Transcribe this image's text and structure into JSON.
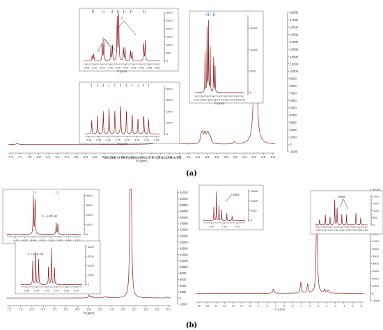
{
  "chart_data": [
    {
      "panel": "(a)",
      "type": "line",
      "title": "mixture of methylamines incl. tri-(2) and tetra-(1)",
      "xlabel": "f1 (ppm)",
      "x_ticks": [
        "7.4",
        "7.2",
        "7.0",
        "6.8",
        "6.6",
        "6.4",
        "6.2",
        "6.0",
        "5.8",
        "5.6",
        "5.4",
        "5.2",
        "5.0",
        "4.8",
        "4.6",
        "4.4",
        "4.2",
        "4.0",
        "3.8",
        "3.6",
        "3.4",
        "3.2",
        "3.0",
        "2.8",
        "2.6",
        "2.4",
        "2.2",
        "2.0",
        "1.8"
      ],
      "xlim": [
        7.45,
        1.75
      ],
      "y_ticks": [
        "18000",
        "17000",
        "16000",
        "15000",
        "14000",
        "13000",
        "12000",
        "11000",
        "10000",
        "9000",
        "8000",
        "7000",
        "6000",
        "5000",
        "4000",
        "3000",
        "2000",
        "1000",
        "0",
        "-1000"
      ],
      "ylim": [
        -1000,
        18000
      ],
      "peaks": [
        {
          "ppm": 4.24,
          "h": 600
        },
        {
          "ppm": 4.2,
          "h": 900
        },
        {
          "ppm": 4.15,
          "h": 1800
        },
        {
          "ppm": 4.1,
          "h": 1400
        },
        {
          "ppm": 4.07,
          "h": 2100
        },
        {
          "ppm": 4.05,
          "h": 2600
        },
        {
          "ppm": 4.02,
          "h": 1500
        },
        {
          "ppm": 3.97,
          "h": 1200
        },
        {
          "ppm": 3.88,
          "h": 1100
        },
        {
          "ppm": 3.33,
          "h": 900
        },
        {
          "ppm": 3.3,
          "h": 1200
        },
        {
          "ppm": 3.25,
          "h": 1300
        },
        {
          "ppm": 3.2,
          "h": 1100
        },
        {
          "ppm": 3.17,
          "h": 900
        },
        {
          "ppm": 3.13,
          "h": 700
        },
        {
          "ppm": 2.62,
          "h": 300
        },
        {
          "ppm": 2.18,
          "h": 17500
        },
        {
          "ppm": 2.16,
          "h": 12000
        },
        {
          "ppm": 7.26,
          "h": 150
        }
      ],
      "insets": [
        {
          "x_ticks": [
            "4.25",
            "4.20",
            "4.15",
            "4.10",
            "4.05",
            "4.00",
            "3.95",
            "3.90",
            "3.85",
            "3.80"
          ],
          "xlim": [
            4.27,
            3.78
          ],
          "y_ticks": [
            "3000",
            "2500",
            "2000",
            "1500",
            "1000",
            "500",
            "0"
          ],
          "ylim": [
            -100,
            3000
          ],
          "xlabel": "f1 (ppm)",
          "annotations": [
            "1",
            "2"
          ],
          "peaks": [
            {
              "ppm": 4.215,
              "h": 350
            },
            {
              "ppm": 4.205,
              "h": 450
            },
            {
              "ppm": 4.15,
              "h": 1200
            },
            {
              "ppm": 4.14,
              "h": 1300
            },
            {
              "ppm": 4.095,
              "h": 900
            },
            {
              "ppm": 4.085,
              "h": 1000
            },
            {
              "ppm": 4.055,
              "h": 2900
            },
            {
              "ppm": 4.045,
              "h": 2950
            },
            {
              "ppm": 4.015,
              "h": 800
            },
            {
              "ppm": 4.005,
              "h": 850
            },
            {
              "ppm": 3.97,
              "h": 650
            },
            {
              "ppm": 3.96,
              "h": 600
            },
            {
              "ppm": 3.885,
              "h": 1100
            },
            {
              "ppm": 3.875,
              "h": 1300
            }
          ]
        },
        {
          "x_ticks": [
            "2.22",
            "2.20",
            "2.18",
            "2.16",
            "2.14",
            "2.12",
            "2.10",
            "2.08",
            "2.06"
          ],
          "xlim": [
            2.225,
            2.055
          ],
          "y_ticks": [
            "15000",
            "10000",
            "5000",
            "0"
          ],
          "ylim": [
            -500,
            18000
          ],
          "xlabel": "f1 (ppm)",
          "peaks": [
            {
              "ppm": 2.19,
              "h": 9500
            },
            {
              "ppm": 2.183,
              "h": 15000
            },
            {
              "ppm": 2.178,
              "h": 16500
            },
            {
              "ppm": 2.172,
              "h": 12000
            },
            {
              "ppm": 2.16,
              "h": 8500
            },
            {
              "ppm": 2.155,
              "h": 7000
            }
          ]
        },
        {
          "x_ticks": [
            "3.40",
            "3.35",
            "3.30",
            "3.25",
            "3.20",
            "3.15",
            "3.10",
            "3.05"
          ],
          "xlim": [
            3.42,
            3.03
          ],
          "y_ticks": [
            "4000",
            "3000",
            "2000",
            "1000",
            "0"
          ],
          "ylim": [
            -100,
            4200
          ],
          "xlabel": "f1 (ppm)",
          "peaks": [
            {
              "ppm": 3.385,
              "h": 1200
            },
            {
              "ppm": 3.355,
              "h": 1600
            },
            {
              "ppm": 3.325,
              "h": 2000
            },
            {
              "ppm": 3.295,
              "h": 2300
            },
            {
              "ppm": 3.265,
              "h": 2100
            },
            {
              "ppm": 3.235,
              "h": 2600
            },
            {
              "ppm": 3.205,
              "h": 2200
            },
            {
              "ppm": 3.175,
              "h": 1900
            },
            {
              "ppm": 3.145,
              "h": 1500
            },
            {
              "ppm": 3.115,
              "h": 1700
            },
            {
              "ppm": 3.09,
              "h": 1300
            }
          ]
        }
      ]
    },
    {
      "panel": "(b)-left",
      "type": "line",
      "xlabel": "f1 (ppm)",
      "x_ticks": [
        "7.5",
        "7.0",
        "6.5",
        "6.0",
        "5.5",
        "5.0",
        "4.5",
        "4.0",
        "3.5",
        "3.0",
        "2.5",
        "2.0",
        "1.5",
        "1.0",
        "0.5"
      ],
      "xlim": [
        7.6,
        0.4
      ],
      "y_ticks": [
        "34000",
        "32000",
        "30000",
        "28000",
        "26000",
        "24000",
        "22000",
        "20000",
        "18000",
        "16000",
        "14000",
        "12000",
        "10000",
        "8000",
        "6000",
        "4000",
        "2000",
        "0",
        "-2000"
      ],
      "ylim": [
        -2000,
        35000
      ],
      "peaks": [
        {
          "ppm": 3.99,
          "h": 900
        },
        {
          "ppm": 3.87,
          "h": 600
        },
        {
          "ppm": 3.32,
          "h": 400
        },
        {
          "ppm": 3.22,
          "h": 500
        },
        {
          "ppm": 2.18,
          "h": 33000
        },
        {
          "ppm": 2.13,
          "h": 31000
        },
        {
          "ppm": 0.55,
          "h": 300
        }
      ],
      "insets": [
        {
          "x_ticks": [
            "4.10",
            "4.05",
            "4.00",
            "3.95",
            "3.90",
            "3.85",
            "3.80",
            "3.75"
          ],
          "xlim": [
            4.15,
            3.73
          ],
          "y_ticks": [
            "4000",
            "3000",
            "2000",
            "1000",
            "0"
          ],
          "ylim": [
            -100,
            4200
          ],
          "annotations": [
            "J = 2.43 Hz"
          ],
          "peaks": [
            {
              "ppm": 4.0,
              "h": 4000
            },
            {
              "ppm": 3.99,
              "h": 3700
            },
            {
              "ppm": 3.87,
              "h": 1200
            },
            {
              "ppm": 3.86,
              "h": 1100
            }
          ]
        },
        {
          "x_ticks": [
            "3.35",
            "3.30",
            "3.25",
            "3.20",
            "3.15",
            "3.10"
          ],
          "xlim": [
            3.38,
            3.07
          ],
          "y_ticks": [
            "4000",
            "3000",
            "2000",
            "1000",
            "0"
          ],
          "ylim": [
            -100,
            4200
          ],
          "annotations": [
            "J = 11.3 Hz"
          ],
          "peaks": [
            {
              "ppm": 3.32,
              "h": 2500
            },
            {
              "ppm": 3.305,
              "h": 3800
            },
            {
              "ppm": 3.29,
              "h": 2700
            },
            {
              "ppm": 3.24,
              "h": 2100
            },
            {
              "ppm": 3.225,
              "h": 3900
            },
            {
              "ppm": 3.21,
              "h": 2000
            }
          ]
        }
      ]
    },
    {
      "panel": "(b)-right",
      "type": "line",
      "xlabel": "f1 (ppm)",
      "x_ticks": [
        "16",
        "15",
        "14",
        "13",
        "12",
        "11",
        "10",
        "9",
        "8",
        "7",
        "6",
        "5",
        "4",
        "3",
        "2",
        "1",
        "0",
        "-1",
        "-2",
        "-3"
      ],
      "xlim": [
        16.3,
        -3.3
      ],
      "y_ticks": [
        "14000",
        "13000",
        "12000",
        "11000",
        "10000",
        "9000",
        "8000",
        "7000",
        "6000",
        "5000",
        "4000",
        "3000",
        "2000",
        "1000",
        "0",
        "-1000"
      ],
      "ylim": [
        -1000,
        14000
      ],
      "peaks": [
        {
          "ppm": 7.26,
          "h": 600
        },
        {
          "ppm": 4.05,
          "h": 1500
        },
        {
          "ppm": 3.25,
          "h": 1200
        },
        {
          "ppm": 2.18,
          "h": 13000
        },
        {
          "ppm": 1.25,
          "h": 500
        },
        {
          "ppm": 0.85,
          "h": 400
        }
      ],
      "insets": [
        {
          "x_ticks": [
            "2.20",
            "2.15",
            "2.10"
          ],
          "xlim": [
            2.23,
            2.07
          ],
          "y_ticks": [
            "15000",
            "10000",
            "5000",
            "0"
          ],
          "ylim": [
            -500,
            16000
          ],
          "annotations": [
            "tetra"
          ],
          "peaks": [
            {
              "ppm": 2.19,
              "h": 7000
            },
            {
              "ppm": 2.18,
              "h": 15500
            },
            {
              "ppm": 2.17,
              "h": 9000
            },
            {
              "ppm": 2.16,
              "h": 6000
            },
            {
              "ppm": 2.14,
              "h": 4000
            },
            {
              "ppm": 2.12,
              "h": 2500
            }
          ]
        },
        {
          "x_ticks": [
            "4.20",
            "4.15",
            "4.10",
            "4.05",
            "4.00",
            "3.95",
            "3.90",
            "3.85",
            "3.80"
          ],
          "xlim": [
            4.23,
            3.78
          ],
          "y_ticks": [
            "2000",
            "1500",
            "1000",
            "500",
            "0"
          ],
          "ylim": [
            -50,
            2100
          ],
          "annotations": [
            "tetra"
          ],
          "peaks": [
            {
              "ppm": 4.19,
              "h": 400
            },
            {
              "ppm": 4.14,
              "h": 700
            },
            {
              "ppm": 4.1,
              "h": 600
            },
            {
              "ppm": 4.06,
              "h": 1900
            },
            {
              "ppm": 4.04,
              "h": 1300
            },
            {
              "ppm": 4.0,
              "h": 800
            },
            {
              "ppm": 3.96,
              "h": 700
            },
            {
              "ppm": 3.88,
              "h": 900
            },
            {
              "ppm": 3.84,
              "h": 500
            }
          ]
        }
      ]
    },
    {
      "panel_labels": [
        "(a)",
        "(b)"
      ]
    }
  ]
}
